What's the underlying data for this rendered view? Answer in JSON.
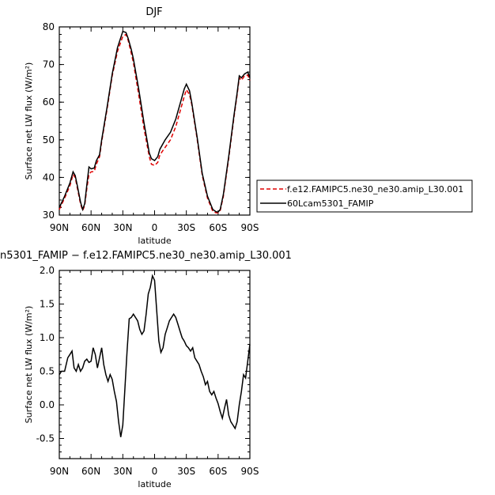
{
  "chart_data": [
    {
      "type": "line",
      "title": "DJF",
      "xlabel": "latitude",
      "ylabel": "Surface net LW flux (W/m²)",
      "xlim": [
        90,
        -90
      ],
      "ylim": [
        30,
        80
      ],
      "x_ticks": [
        90,
        60,
        30,
        0,
        -30,
        -60,
        -90
      ],
      "x_tick_labels": [
        "90N",
        "60N",
        "30N",
        "0",
        "30S",
        "60S",
        "90S"
      ],
      "y_ticks": [
        30,
        40,
        50,
        60,
        70,
        80
      ],
      "y_tick_labels": [
        "30",
        "40",
        "50",
        "60",
        "70",
        "80"
      ],
      "legend_position": "right",
      "series": [
        {
          "name": "f.e12.FAMIPC5.ne30_ne30.amip_L30.001",
          "color": "#e00000",
          "dash": true,
          "x": [
            90,
            85,
            80,
            77,
            75,
            73,
            70,
            68,
            66,
            64,
            62,
            60,
            57,
            55,
            52,
            50,
            45,
            40,
            35,
            30,
            27,
            25,
            22,
            20,
            15,
            10,
            5,
            3,
            0,
            -3,
            -5,
            -10,
            -15,
            -20,
            -25,
            -28,
            -30,
            -33,
            -35,
            -40,
            -45,
            -50,
            -55,
            -58,
            -60,
            -62,
            -65,
            -70,
            -75,
            -78,
            -80,
            -82,
            -85,
            -88,
            -90
          ],
          "y": [
            31.5,
            34.5,
            37.8,
            40.8,
            40.0,
            37.2,
            33.0,
            31.2,
            32.5,
            37.0,
            40.8,
            41.5,
            41.6,
            43.5,
            45.5,
            49.5,
            58.0,
            67.0,
            73.5,
            77.5,
            78.0,
            76.5,
            73.0,
            70.5,
            62.0,
            53.0,
            45.5,
            43.5,
            43.2,
            44.0,
            46.0,
            48.0,
            50.0,
            53.5,
            58.5,
            61.5,
            63.3,
            62.0,
            59.5,
            50.5,
            40.5,
            34.5,
            31.0,
            30.6,
            30.6,
            31.2,
            35.0,
            45.0,
            56.0,
            62.0,
            66.5,
            65.8,
            67.0,
            67.2,
            65.8
          ]
        },
        {
          "name": "60Lcam5301_FAMIP",
          "color": "#000000",
          "dash": false,
          "x": [
            90,
            85,
            80,
            77,
            75,
            73,
            70,
            68,
            66,
            64,
            62,
            60,
            57,
            55,
            52,
            50,
            45,
            40,
            35,
            30,
            27,
            25,
            22,
            20,
            15,
            10,
            5,
            3,
            0,
            -3,
            -5,
            -10,
            -15,
            -20,
            -25,
            -28,
            -30,
            -33,
            -35,
            -40,
            -45,
            -50,
            -55,
            -58,
            -60,
            -62,
            -65,
            -70,
            -75,
            -78,
            -80,
            -82,
            -85,
            -88,
            -90
          ],
          "y": [
            32.0,
            35.0,
            38.5,
            41.5,
            40.5,
            37.8,
            33.5,
            31.5,
            33.0,
            38.0,
            42.8,
            42.3,
            42.5,
            44.5,
            46.0,
            50.0,
            58.5,
            67.5,
            74.5,
            78.8,
            78.5,
            77.0,
            74.0,
            71.5,
            63.5,
            54.5,
            46.5,
            45.0,
            44.5,
            45.5,
            47.5,
            50.0,
            52.0,
            55.5,
            60.5,
            63.5,
            64.8,
            63.0,
            60.0,
            51.0,
            41.0,
            35.0,
            31.5,
            30.9,
            30.8,
            31.5,
            35.5,
            45.5,
            56.5,
            62.5,
            67.0,
            66.5,
            67.5,
            68.0,
            66.5
          ]
        }
      ]
    },
    {
      "type": "line",
      "title": "n5301_FAMIP − f.e12.FAMIPC5.ne30_ne30.amip_L30.001",
      "xlabel": "latitude",
      "ylabel": "Surface net LW flux (W/m²)",
      "xlim": [
        90,
        -90
      ],
      "ylim": [
        -0.8,
        2.0
      ],
      "x_ticks": [
        90,
        60,
        30,
        0,
        -30,
        -60,
        -90
      ],
      "x_tick_labels": [
        "90N",
        "60N",
        "30N",
        "0",
        "30S",
        "60S",
        "90S"
      ],
      "y_ticks": [
        2.0,
        1.5,
        1.0,
        0.5,
        0.0,
        -0.5
      ],
      "y_tick_labels": [
        "2.0",
        "1.5",
        "1.0",
        "0.5",
        "0.0",
        "-0.5"
      ],
      "series": [
        {
          "color": "#000000",
          "dash": false,
          "x": [
            90,
            88,
            85,
            82,
            80,
            78,
            76,
            74,
            72,
            70,
            68,
            66,
            64,
            62,
            60,
            58,
            56,
            54,
            52,
            50,
            48,
            46,
            44,
            42,
            40,
            38,
            36,
            34,
            32,
            30,
            28,
            26,
            24,
            22,
            20,
            18,
            16,
            14,
            12,
            10,
            8,
            6,
            4,
            2,
            0,
            -2,
            -4,
            -6,
            -8,
            -10,
            -12,
            -14,
            -16,
            -18,
            -20,
            -22,
            -24,
            -26,
            -28,
            -30,
            -32,
            -34,
            -36,
            -38,
            -40,
            -42,
            -44,
            -46,
            -48,
            -50,
            -52,
            -54,
            -56,
            -58,
            -60,
            -62,
            -64,
            -66,
            -68,
            -70,
            -72,
            -74,
            -76,
            -78,
            -80,
            -82,
            -84,
            -86,
            -88,
            -90
          ],
          "y": [
            0.45,
            0.5,
            0.5,
            0.7,
            0.75,
            0.8,
            0.55,
            0.5,
            0.6,
            0.5,
            0.55,
            0.65,
            0.68,
            0.63,
            0.65,
            0.85,
            0.75,
            0.55,
            0.7,
            0.85,
            0.6,
            0.45,
            0.35,
            0.45,
            0.38,
            0.2,
            0.05,
            -0.25,
            -0.48,
            -0.3,
            0.25,
            0.8,
            1.28,
            1.3,
            1.35,
            1.3,
            1.25,
            1.12,
            1.05,
            1.1,
            1.35,
            1.65,
            1.75,
            1.92,
            1.85,
            1.4,
            0.95,
            0.78,
            0.85,
            1.05,
            1.15,
            1.25,
            1.3,
            1.35,
            1.3,
            1.2,
            1.1,
            1.0,
            0.95,
            0.88,
            0.85,
            0.8,
            0.85,
            0.7,
            0.65,
            0.6,
            0.5,
            0.42,
            0.3,
            0.35,
            0.2,
            0.15,
            0.2,
            0.1,
            0.02,
            -0.1,
            -0.2,
            -0.05,
            0.08,
            -0.15,
            -0.25,
            -0.3,
            -0.35,
            -0.25,
            0.0,
            0.2,
            0.45,
            0.4,
            0.65,
            0.9
          ]
        }
      ]
    }
  ]
}
